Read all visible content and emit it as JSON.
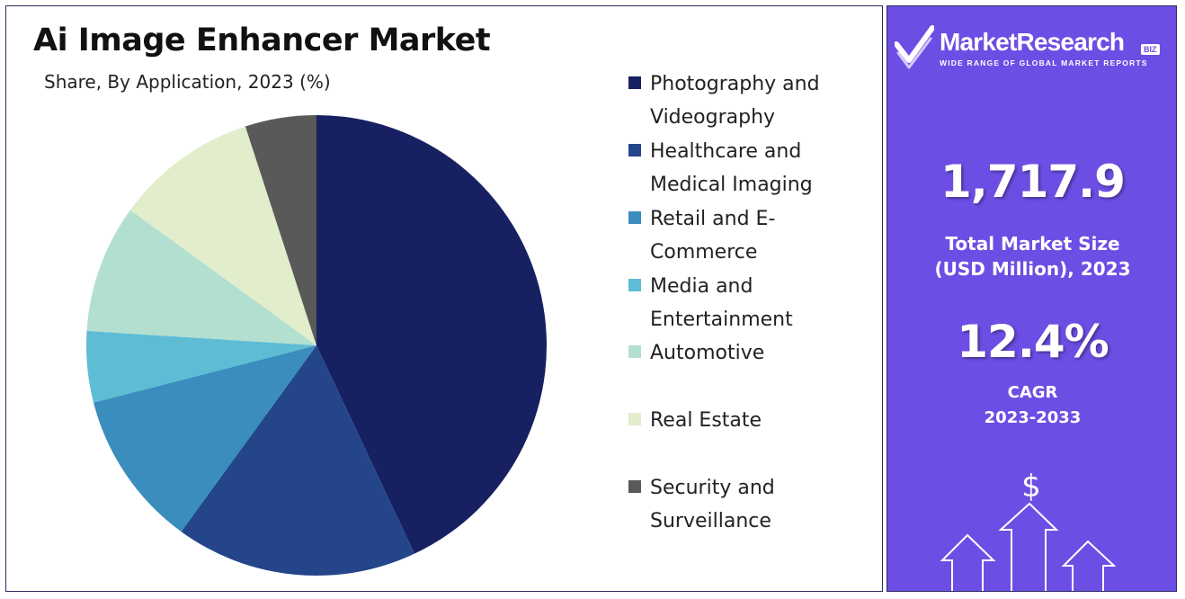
{
  "header": {
    "title": "Ai Image Enhancer Market",
    "subtitle": "Share, By Application, 2023 (%)"
  },
  "chart_data": {
    "type": "pie",
    "title": "Ai Image Enhancer Market",
    "subtitle": "Share, By Application, 2023 (%)",
    "categories": [
      "Photography and Videography",
      "Healthcare and Medical Imaging",
      "Retail and E-Commerce",
      "Media and Entertainment",
      "Automotive",
      "Real Estate",
      "Security and Surveillance"
    ],
    "values": [
      43,
      17,
      11,
      5,
      9,
      10,
      5
    ],
    "colors": [
      "#172061",
      "#24458a",
      "#3a8dbd",
      "#5ebcd4",
      "#b3dfd0",
      "#e1edcb",
      "#595959"
    ],
    "legend_position": "right"
  },
  "legend": [
    {
      "line1": "Photography and",
      "line2": "Videography",
      "color": "#172061"
    },
    {
      "line1": "Healthcare and",
      "line2": "Medical Imaging",
      "color": "#24458a"
    },
    {
      "line1": "Retail and E-",
      "line2": "Commerce",
      "color": "#3a8dbd"
    },
    {
      "line1": "Media and",
      "line2": "Entertainment",
      "color": "#5ebcd4"
    },
    {
      "line1": "Automotive",
      "line2": "",
      "color": "#b3dfd0"
    },
    {
      "line1": "Real Estate",
      "line2": "",
      "color": "#e1edcb"
    },
    {
      "line1": "Security and",
      "line2": "Surveillance",
      "color": "#595959"
    }
  ],
  "sidebar": {
    "logo_name": "MarketResearch",
    "logo_badge": "BIZ",
    "logo_tagline": "WIDE RANGE OF GLOBAL MARKET REPORTS",
    "market_size_value": "1,717.9",
    "market_size_label_line1": "Total Market Size",
    "market_size_label_line2": "(USD Million), 2023",
    "cagr_value": "12.4%",
    "cagr_label_line1": "CAGR",
    "cagr_label_line2": "2023-2033",
    "dollar_sign": "$",
    "background_color": "#6c4ee4"
  }
}
